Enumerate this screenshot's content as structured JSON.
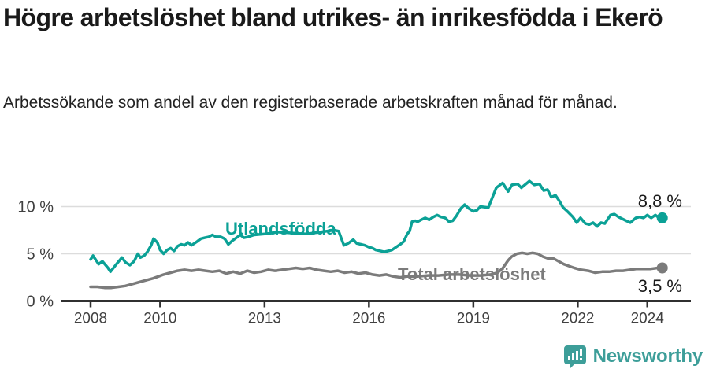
{
  "header": {
    "title": "Högre arbetslöshet bland utrikes- än inrikesfödda i Ekerö",
    "subtitle": "Arbetssökande som andel av den registerbaserade arbetskraften månad för månad."
  },
  "chart_data": {
    "type": "line",
    "title": "Högre arbetslöshet bland utrikes- än inrikesfödda i Ekerö",
    "subtitle": "Arbetssökande som andel av den registerbaserade arbetskraften månad för månad.",
    "unit": "%",
    "x_axis": {
      "range": [
        2007.15,
        2025.25
      ],
      "ticks": [
        2008,
        2010,
        2013,
        2016,
        2019,
        2022,
        2024
      ],
      "tick_labels": [
        "2008",
        "2010",
        "2013",
        "2016",
        "2019",
        "2022",
        "2024"
      ]
    },
    "y_axis": {
      "range": [
        0,
        13.8
      ],
      "ticks": [
        0,
        5,
        10
      ],
      "tick_labels": [
        "0 %",
        "5 %",
        "10 %"
      ],
      "gridlines": true
    },
    "legend_position": "inline-labels",
    "series": [
      {
        "name": "Utlandsfödda",
        "color": "#0ba196",
        "end_label": "8,8 %",
        "end_value": 8.8,
        "points": [
          [
            2008.0,
            4.4
          ],
          [
            2008.07,
            4.8
          ],
          [
            2008.23,
            3.9
          ],
          [
            2008.34,
            4.2
          ],
          [
            2008.5,
            3.5
          ],
          [
            2008.57,
            3.1
          ],
          [
            2008.72,
            3.8
          ],
          [
            2008.9,
            4.6
          ],
          [
            2009.0,
            4.1
          ],
          [
            2009.13,
            3.8
          ],
          [
            2009.25,
            4.2
          ],
          [
            2009.36,
            5.0
          ],
          [
            2009.43,
            4.6
          ],
          [
            2009.54,
            4.8
          ],
          [
            2009.63,
            5.2
          ],
          [
            2009.74,
            5.9
          ],
          [
            2009.81,
            6.6
          ],
          [
            2009.92,
            6.2
          ],
          [
            2010.0,
            5.4
          ],
          [
            2010.1,
            5.0
          ],
          [
            2010.2,
            5.4
          ],
          [
            2010.3,
            5.6
          ],
          [
            2010.4,
            5.3
          ],
          [
            2010.5,
            5.8
          ],
          [
            2010.6,
            6.0
          ],
          [
            2010.7,
            5.9
          ],
          [
            2010.8,
            6.2
          ],
          [
            2010.9,
            5.9
          ],
          [
            2011.06,
            6.3
          ],
          [
            2011.17,
            6.6
          ],
          [
            2011.28,
            6.7
          ],
          [
            2011.4,
            6.8
          ],
          [
            2011.5,
            7.0
          ],
          [
            2011.6,
            6.8
          ],
          [
            2011.74,
            6.8
          ],
          [
            2011.85,
            6.6
          ],
          [
            2011.96,
            6.0
          ],
          [
            2012.08,
            6.4
          ],
          [
            2012.19,
            6.7
          ],
          [
            2012.3,
            7.0
          ],
          [
            2012.41,
            6.7
          ],
          [
            2012.53,
            6.8
          ],
          [
            2012.7,
            7.0
          ],
          [
            2013.0,
            7.1
          ],
          [
            2013.4,
            7.3
          ],
          [
            2013.8,
            7.2
          ],
          [
            2014.2,
            7.1
          ],
          [
            2014.6,
            7.3
          ],
          [
            2015.0,
            7.5
          ],
          [
            2015.13,
            7.4
          ],
          [
            2015.2,
            6.7
          ],
          [
            2015.28,
            5.9
          ],
          [
            2015.4,
            6.1
          ],
          [
            2015.55,
            6.5
          ],
          [
            2015.65,
            6.1
          ],
          [
            2015.77,
            6.0
          ],
          [
            2015.88,
            5.9
          ],
          [
            2016.0,
            5.7
          ],
          [
            2016.1,
            5.6
          ],
          [
            2016.2,
            5.4
          ],
          [
            2016.33,
            5.3
          ],
          [
            2016.44,
            5.2
          ],
          [
            2016.55,
            5.3
          ],
          [
            2016.66,
            5.4
          ],
          [
            2016.78,
            5.7
          ],
          [
            2016.9,
            6.0
          ],
          [
            2017.0,
            6.3
          ],
          [
            2017.1,
            7.1
          ],
          [
            2017.17,
            7.4
          ],
          [
            2017.24,
            8.4
          ],
          [
            2017.33,
            8.5
          ],
          [
            2017.4,
            8.4
          ],
          [
            2017.5,
            8.6
          ],
          [
            2017.62,
            8.8
          ],
          [
            2017.73,
            8.6
          ],
          [
            2017.85,
            8.9
          ],
          [
            2017.96,
            9.1
          ],
          [
            2018.07,
            8.9
          ],
          [
            2018.19,
            8.8
          ],
          [
            2018.3,
            8.4
          ],
          [
            2018.41,
            8.5
          ],
          [
            2018.53,
            9.1
          ],
          [
            2018.64,
            9.8
          ],
          [
            2018.75,
            10.2
          ],
          [
            2018.87,
            9.8
          ],
          [
            2019.0,
            9.5
          ],
          [
            2019.1,
            9.6
          ],
          [
            2019.2,
            10.0
          ],
          [
            2019.43,
            9.9
          ],
          [
            2019.55,
            11.0
          ],
          [
            2019.66,
            12.0
          ],
          [
            2019.84,
            12.5
          ],
          [
            2020.0,
            11.6
          ],
          [
            2020.11,
            12.3
          ],
          [
            2020.27,
            12.4
          ],
          [
            2020.38,
            12.0
          ],
          [
            2020.61,
            12.7
          ],
          [
            2020.75,
            12.3
          ],
          [
            2020.9,
            12.4
          ],
          [
            2021.02,
            11.7
          ],
          [
            2021.13,
            11.8
          ],
          [
            2021.24,
            11.0
          ],
          [
            2021.36,
            11.2
          ],
          [
            2021.47,
            10.6
          ],
          [
            2021.58,
            9.9
          ],
          [
            2021.7,
            9.5
          ],
          [
            2021.86,
            8.9
          ],
          [
            2021.97,
            8.3
          ],
          [
            2022.08,
            8.8
          ],
          [
            2022.22,
            8.2
          ],
          [
            2022.33,
            8.1
          ],
          [
            2022.44,
            8.3
          ],
          [
            2022.56,
            7.9
          ],
          [
            2022.67,
            8.3
          ],
          [
            2022.78,
            8.2
          ],
          [
            2022.94,
            9.1
          ],
          [
            2023.05,
            9.2
          ],
          [
            2023.17,
            8.9
          ],
          [
            2023.28,
            8.7
          ],
          [
            2023.39,
            8.5
          ],
          [
            2023.51,
            8.3
          ],
          [
            2023.67,
            8.8
          ],
          [
            2023.78,
            8.9
          ],
          [
            2023.89,
            8.8
          ],
          [
            2024.0,
            9.1
          ],
          [
            2024.11,
            8.8
          ],
          [
            2024.23,
            9.1
          ],
          [
            2024.34,
            8.8
          ],
          [
            2024.43,
            8.8
          ]
        ]
      },
      {
        "name": "Total arbetslöshet",
        "color": "#7b7b7b",
        "end_label": "3,5 %",
        "end_value": 3.5,
        "points": [
          [
            2008.0,
            1.5
          ],
          [
            2008.2,
            1.5
          ],
          [
            2008.4,
            1.4
          ],
          [
            2008.6,
            1.4
          ],
          [
            2008.8,
            1.5
          ],
          [
            2009.0,
            1.6
          ],
          [
            2009.2,
            1.8
          ],
          [
            2009.4,
            2.0
          ],
          [
            2009.6,
            2.2
          ],
          [
            2009.8,
            2.4
          ],
          [
            2009.95,
            2.6
          ],
          [
            2010.1,
            2.8
          ],
          [
            2010.3,
            3.0
          ],
          [
            2010.5,
            3.2
          ],
          [
            2010.7,
            3.3
          ],
          [
            2010.9,
            3.2
          ],
          [
            2011.1,
            3.3
          ],
          [
            2011.3,
            3.2
          ],
          [
            2011.5,
            3.1
          ],
          [
            2011.7,
            3.2
          ],
          [
            2011.9,
            2.9
          ],
          [
            2012.1,
            3.1
          ],
          [
            2012.3,
            2.9
          ],
          [
            2012.5,
            3.2
          ],
          [
            2012.7,
            3.0
          ],
          [
            2012.9,
            3.1
          ],
          [
            2013.1,
            3.3
          ],
          [
            2013.3,
            3.2
          ],
          [
            2013.5,
            3.3
          ],
          [
            2013.7,
            3.4
          ],
          [
            2013.9,
            3.5
          ],
          [
            2014.1,
            3.4
          ],
          [
            2014.3,
            3.5
          ],
          [
            2014.5,
            3.3
          ],
          [
            2014.7,
            3.2
          ],
          [
            2014.9,
            3.1
          ],
          [
            2015.1,
            3.2
          ],
          [
            2015.3,
            3.0
          ],
          [
            2015.5,
            3.1
          ],
          [
            2015.7,
            2.9
          ],
          [
            2015.9,
            3.0
          ],
          [
            2016.1,
            2.8
          ],
          [
            2016.3,
            2.7
          ],
          [
            2016.5,
            2.8
          ],
          [
            2016.7,
            2.6
          ],
          [
            2016.9,
            2.5
          ],
          [
            2017.1,
            2.6
          ],
          [
            2017.4,
            2.6
          ],
          [
            2017.7,
            2.7
          ],
          [
            2018.0,
            2.7
          ],
          [
            2018.3,
            2.8
          ],
          [
            2018.6,
            2.8
          ],
          [
            2018.9,
            2.7
          ],
          [
            2019.2,
            2.7
          ],
          [
            2019.5,
            2.8
          ],
          [
            2019.7,
            3.0
          ],
          [
            2019.85,
            3.5
          ],
          [
            2020.0,
            4.3
          ],
          [
            2020.1,
            4.7
          ],
          [
            2020.25,
            5.0
          ],
          [
            2020.4,
            5.1
          ],
          [
            2020.55,
            5.0
          ],
          [
            2020.7,
            5.1
          ],
          [
            2020.85,
            5.0
          ],
          [
            2021.0,
            4.7
          ],
          [
            2021.15,
            4.5
          ],
          [
            2021.3,
            4.5
          ],
          [
            2021.45,
            4.2
          ],
          [
            2021.6,
            3.9
          ],
          [
            2021.75,
            3.7
          ],
          [
            2021.9,
            3.5
          ],
          [
            2022.1,
            3.3
          ],
          [
            2022.3,
            3.2
          ],
          [
            2022.5,
            3.0
          ],
          [
            2022.7,
            3.1
          ],
          [
            2022.9,
            3.1
          ],
          [
            2023.1,
            3.2
          ],
          [
            2023.3,
            3.2
          ],
          [
            2023.5,
            3.3
          ],
          [
            2023.7,
            3.4
          ],
          [
            2023.9,
            3.4
          ],
          [
            2024.1,
            3.4
          ],
          [
            2024.3,
            3.5
          ],
          [
            2024.43,
            3.5
          ]
        ]
      }
    ],
    "colors": {
      "axis": "#303030",
      "tick_text": "#404040",
      "gridline": "#dcdcdc"
    }
  },
  "footer": {
    "brand": "Newsworthy",
    "brand_color": "#3d9e99",
    "logo_icon": "newsworthy-chart-bubble-icon"
  }
}
